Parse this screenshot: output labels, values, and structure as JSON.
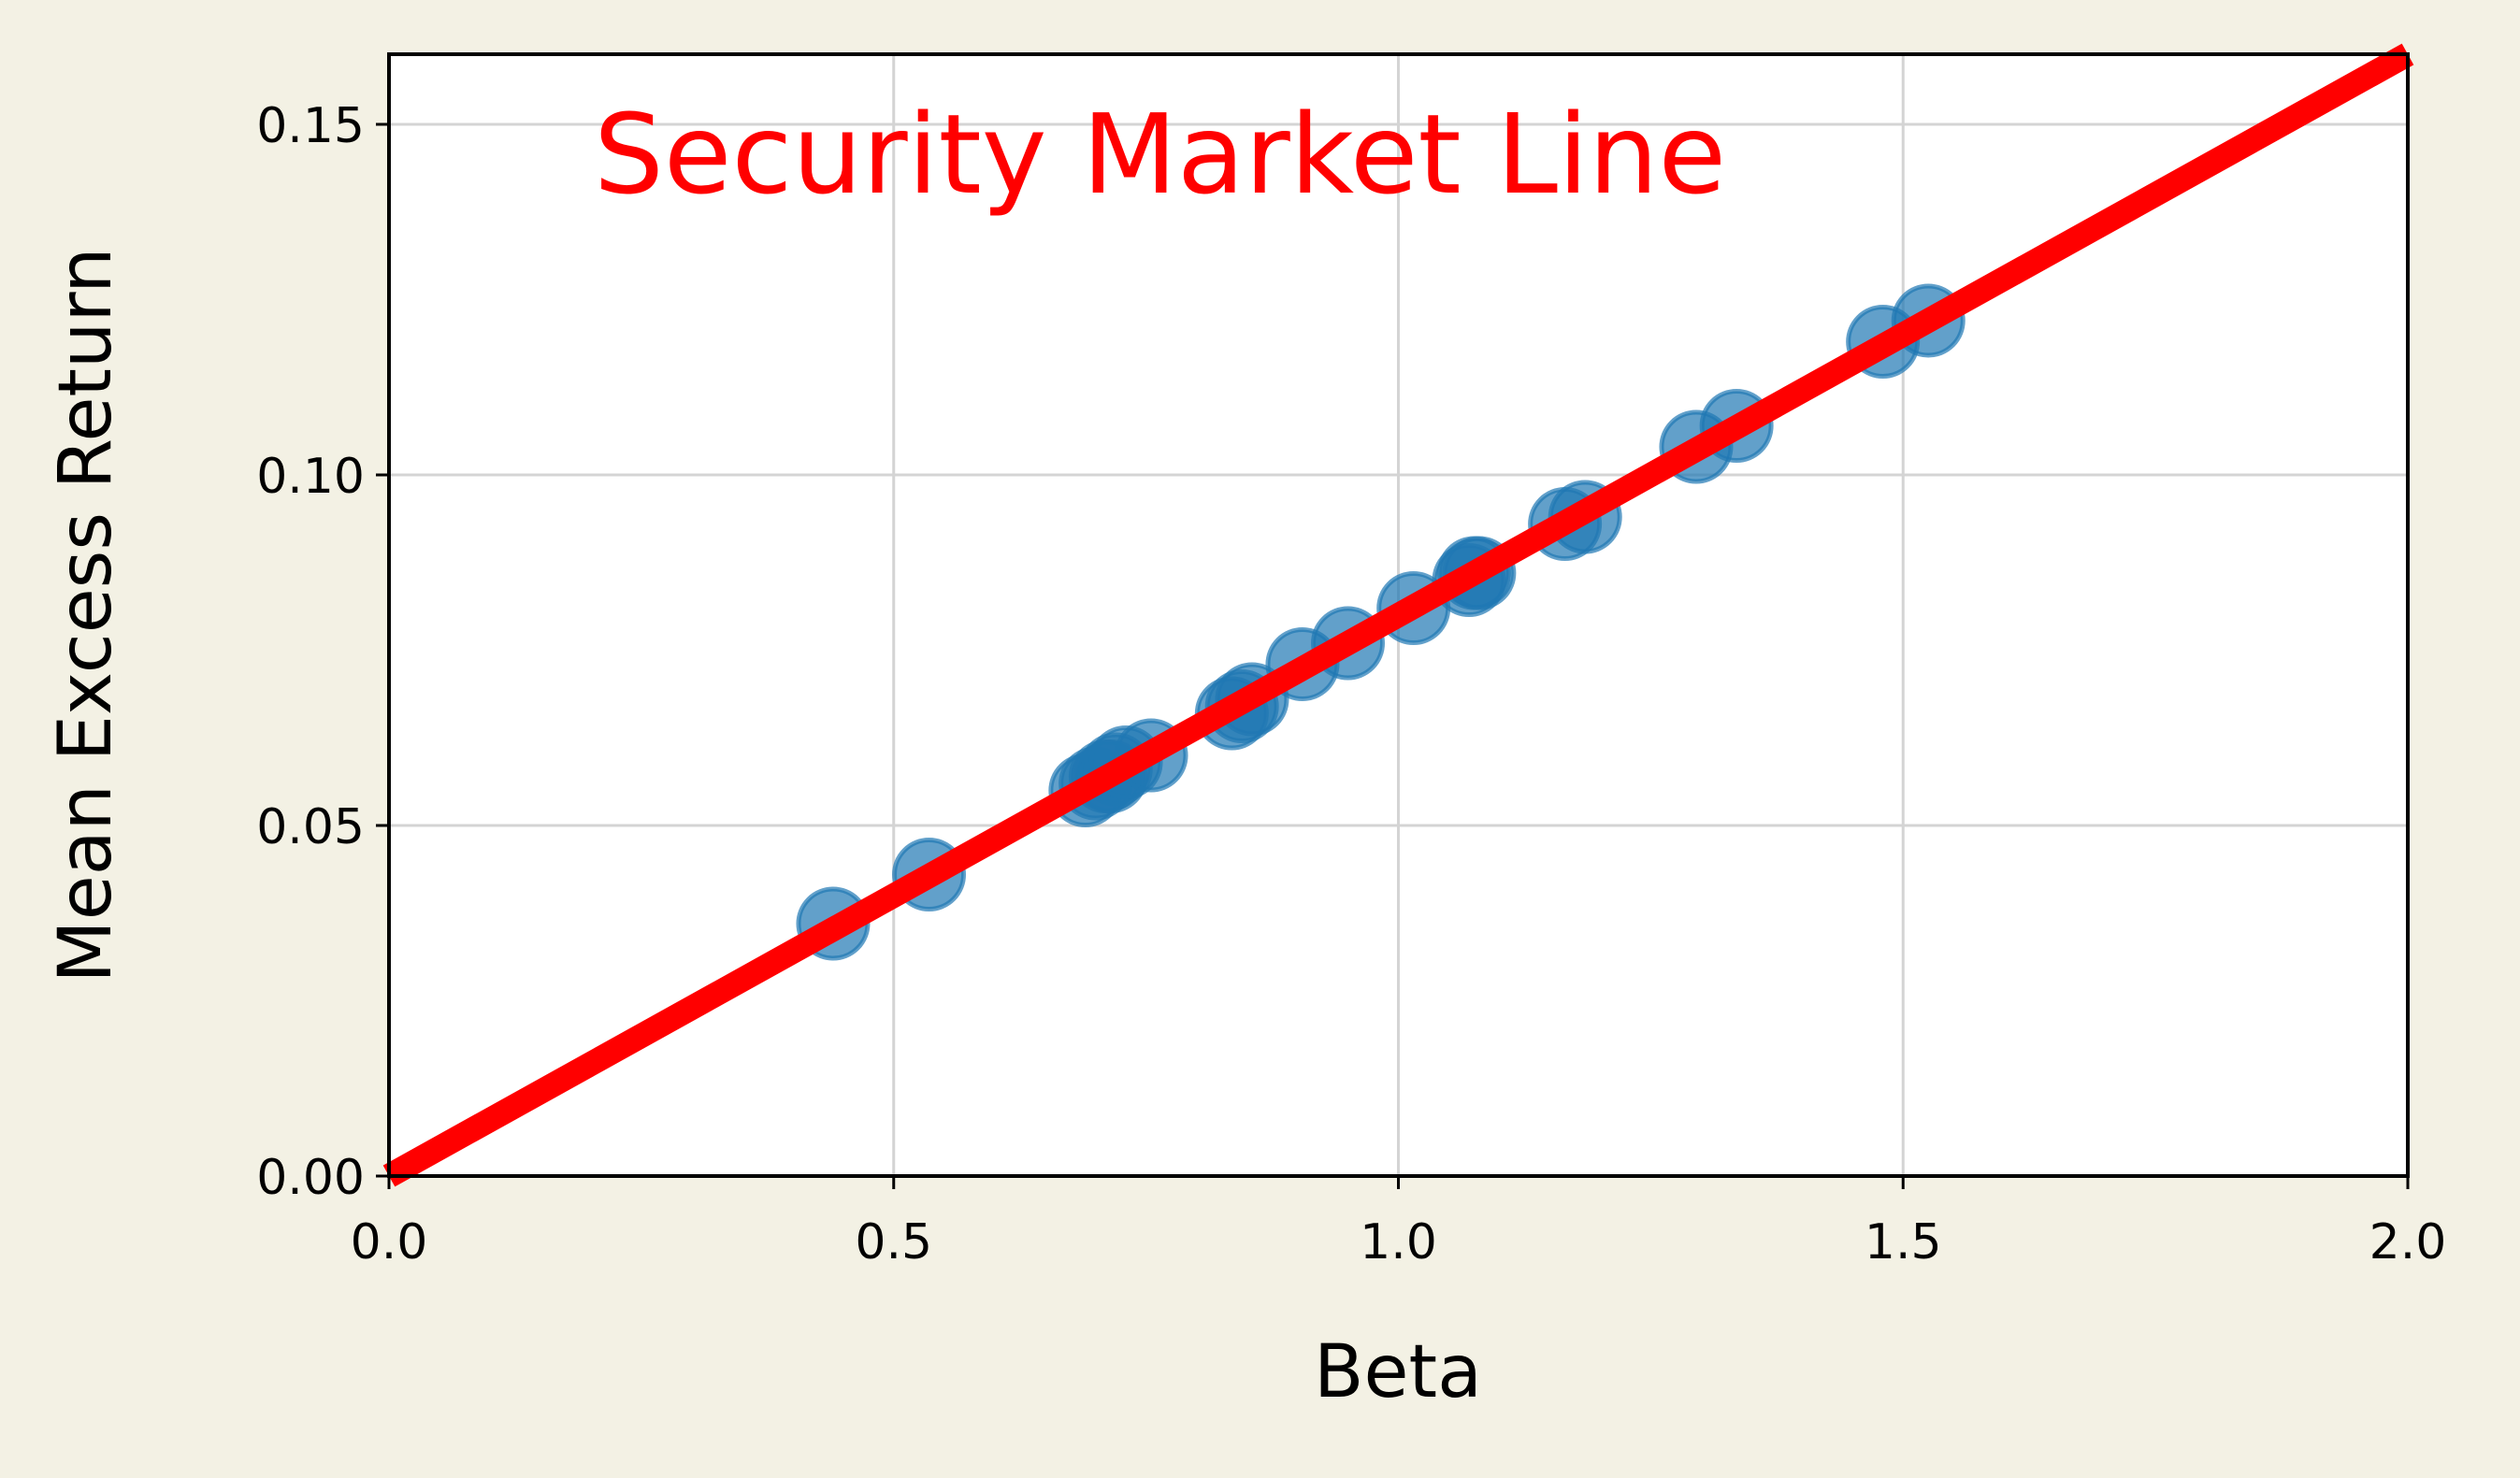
{
  "chart_data": {
    "type": "scatter",
    "xlabel": "Beta",
    "ylabel": "Mean Excess Return",
    "xlim": [
      0.0,
      2.0
    ],
    "ylim": [
      0.0,
      0.16
    ],
    "x_ticks": [
      0.0,
      0.5,
      1.0,
      1.5,
      2.0
    ],
    "x_tick_labels": [
      "0.0",
      "0.5",
      "1.0",
      "1.5",
      "2.0"
    ],
    "y_ticks": [
      0.0,
      0.05,
      0.1,
      0.15
    ],
    "y_tick_labels": [
      "0.00",
      "0.05",
      "0.10",
      "0.15"
    ],
    "grid": true,
    "annotation": {
      "text": "Security Market Line",
      "color": "#ff0000"
    },
    "series": [
      {
        "type": "scatter",
        "color": "#1f77b4",
        "x": [
          0.44,
          0.535,
          0.69,
          0.7,
          0.71,
          0.715,
          0.72,
          0.73,
          0.755,
          0.835,
          0.845,
          0.855,
          0.905,
          0.95,
          1.015,
          1.07,
          1.075,
          1.08,
          1.165,
          1.185,
          1.295,
          1.335,
          1.48,
          1.525
        ],
        "y": [
          0.036,
          0.043,
          0.055,
          0.056,
          0.057,
          0.057,
          0.058,
          0.059,
          0.06,
          0.066,
          0.067,
          0.068,
          0.073,
          0.076,
          0.081,
          0.085,
          0.086,
          0.086,
          0.093,
          0.094,
          0.104,
          0.107,
          0.119,
          0.122
        ]
      },
      {
        "type": "line",
        "color": "#ff0000",
        "x": [
          0.0,
          2.0
        ],
        "y": [
          0.0,
          0.16
        ]
      }
    ]
  }
}
